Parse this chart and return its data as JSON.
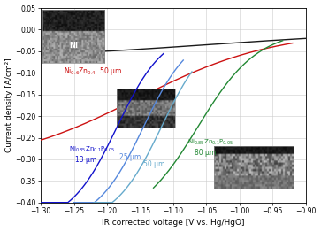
{
  "xlim": [
    -1.3,
    -0.9
  ],
  "ylim": [
    -0.4,
    0.05
  ],
  "xlabel": "IR corrected voltage [V vs. Hg/HgO]",
  "ylabel": "Current density [A/cm²]",
  "xticks": [
    -1.3,
    -1.25,
    -1.2,
    -1.15,
    -1.1,
    -1.05,
    -1.0,
    -0.95,
    -0.9
  ],
  "yticks": [
    -0.4,
    -0.35,
    -0.3,
    -0.25,
    -0.2,
    -0.15,
    -0.1,
    -0.05,
    0.0,
    0.05
  ],
  "bg_color": "#ffffff",
  "grid_color": "#cccccc"
}
